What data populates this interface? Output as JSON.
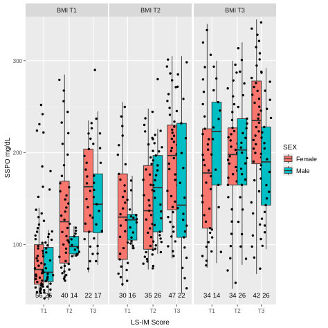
{
  "chart_data": {
    "type": "box",
    "xlabel": "LS-IM Score",
    "ylabel": "SSPO mg/dL",
    "ylim": [
      35,
      348
    ],
    "yticks": [
      100,
      200,
      300
    ],
    "categories": [
      "T1",
      "T2",
      "T3"
    ],
    "legend": {
      "title": "SEX",
      "position": "right"
    },
    "series": [
      {
        "name": "Female",
        "color": "#f8766d"
      },
      {
        "name": "Male",
        "color": "#00bfc4"
      }
    ],
    "panels": [
      {
        "label": "BMI T1",
        "boxes": [
          {
            "category": "T1",
            "sex": "Female",
            "n": "56",
            "min": 47,
            "q1": 57,
            "median": 73,
            "q3": 100,
            "max": 140,
            "outliers": [
              152,
              163,
              185,
              224,
              231,
              242,
              252
            ]
          },
          {
            "category": "T1",
            "sex": "Male",
            "n": "25",
            "min": 40,
            "q1": 60,
            "median": 70,
            "q3": 97,
            "max": 116,
            "outliers": [
              160,
              180,
              222
            ]
          },
          {
            "category": "T2",
            "sex": "Female",
            "n": "40",
            "min": 60,
            "q1": 80,
            "median": 125,
            "q3": 169,
            "max": 285,
            "outliers": []
          },
          {
            "category": "T2",
            "sex": "Male",
            "n": "14",
            "min": 87,
            "q1": 90,
            "median": 98,
            "q3": 109,
            "max": 120,
            "outliers": []
          },
          {
            "category": "T3",
            "sex": "Female",
            "n": "22",
            "min": 70,
            "q1": 114,
            "median": 163,
            "q3": 204,
            "max": 235,
            "outliers": []
          },
          {
            "category": "T3",
            "sex": "Male",
            "n": "17",
            "min": 78,
            "q1": 113,
            "median": 144,
            "q3": 177,
            "max": 245,
            "outliers": [
              290
            ]
          }
        ]
      },
      {
        "label": "BMI T2",
        "boxes": [
          {
            "category": "T1",
            "sex": "Female",
            "n": "30",
            "min": 55,
            "q1": 84,
            "median": 130,
            "q3": 177,
            "max": 255,
            "outliers": []
          },
          {
            "category": "T1",
            "sex": "Male",
            "n": "16",
            "min": 95,
            "q1": 105,
            "median": 127,
            "q3": 133,
            "max": 175,
            "outliers": []
          },
          {
            "category": "T2",
            "sex": "Female",
            "n": "35",
            "min": 73,
            "q1": 95,
            "median": 137,
            "q3": 186,
            "max": 248,
            "outliers": []
          },
          {
            "category": "T2",
            "sex": "Male",
            "n": "26",
            "min": 90,
            "q1": 114,
            "median": 162,
            "q3": 197,
            "max": 226,
            "outliers": [
              280
            ]
          },
          {
            "category": "T3",
            "sex": "Female",
            "n": "47",
            "min": 85,
            "q1": 138,
            "median": 197,
            "q3": 230,
            "max": 305,
            "outliers": []
          },
          {
            "category": "T3",
            "sex": "Male",
            "n": "22",
            "min": 47,
            "q1": 108,
            "median": 143,
            "q3": 232,
            "max": 305,
            "outliers": []
          }
        ]
      },
      {
        "label": "BMI T3",
        "boxes": [
          {
            "category": "T1",
            "sex": "Female",
            "n": "34",
            "min": 75,
            "q1": 118,
            "median": 178,
            "q3": 226,
            "max": 340,
            "outliers": []
          },
          {
            "category": "T1",
            "sex": "Male",
            "n": "14",
            "min": 80,
            "q1": 165,
            "median": 223,
            "q3": 255,
            "max": 300,
            "outliers": []
          },
          {
            "category": "T2",
            "sex": "Female",
            "n": "34",
            "min": 52,
            "q1": 165,
            "median": 198,
            "q3": 227,
            "max": 300,
            "outliers": []
          },
          {
            "category": "T2",
            "sex": "Male",
            "n": "26",
            "min": 78,
            "q1": 165,
            "median": 203,
            "q3": 237,
            "max": 320,
            "outliers": []
          },
          {
            "category": "T3",
            "sex": "Female",
            "n": "42",
            "min": 68,
            "q1": 188,
            "median": 235,
            "q3": 278,
            "max": 345,
            "outliers": []
          },
          {
            "category": "T3",
            "sex": "Male",
            "n": "26",
            "min": 95,
            "q1": 143,
            "median": 190,
            "q3": 228,
            "max": 292,
            "outliers": []
          }
        ]
      }
    ]
  }
}
